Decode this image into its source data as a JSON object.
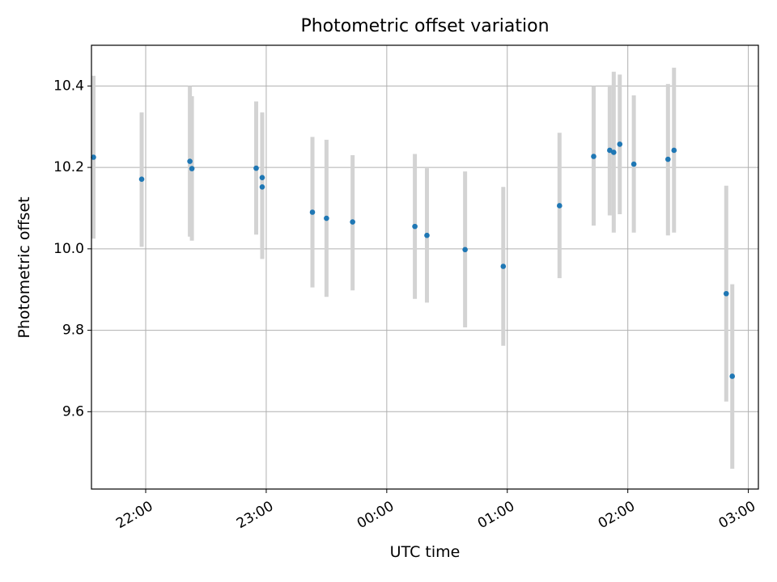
{
  "chart_data": {
    "type": "scatter",
    "title": "Photometric offset variation",
    "xlabel": "UTC time",
    "ylabel": "Photometric offset",
    "grid": true,
    "ylim": [
      9.41,
      10.5
    ],
    "xlim": [
      "21:33",
      "03:05"
    ],
    "x_ticks": [
      "22:00",
      "23:00",
      "00:00",
      "01:00",
      "02:00",
      "03:00"
    ],
    "y_ticks": [
      "9.6",
      "9.8",
      "10.0",
      "10.2",
      "10.4"
    ],
    "colors": {
      "point": "#1f77b4",
      "errorbar": "#d3d3d3",
      "grid": "#b0b0b0"
    },
    "points": [
      {
        "x": "21:34",
        "y": 10.225,
        "lo": 10.025,
        "hi": 10.425
      },
      {
        "x": "21:58",
        "y": 10.171,
        "lo": 10.005,
        "hi": 10.335
      },
      {
        "x": "22:22",
        "y": 10.215,
        "lo": 10.03,
        "hi": 10.4
      },
      {
        "x": "22:23",
        "y": 10.197,
        "lo": 10.02,
        "hi": 10.375
      },
      {
        "x": "22:55",
        "y": 10.198,
        "lo": 10.035,
        "hi": 10.362
      },
      {
        "x": "22:58",
        "y": 10.175,
        "lo": 10.0,
        "hi": 10.335
      },
      {
        "x": "22:58",
        "y": 10.152,
        "lo": 9.975,
        "hi": 10.33
      },
      {
        "x": "23:23",
        "y": 10.09,
        "lo": 9.905,
        "hi": 10.275
      },
      {
        "x": "23:30",
        "y": 10.075,
        "lo": 9.882,
        "hi": 10.268
      },
      {
        "x": "23:43",
        "y": 10.066,
        "lo": 9.898,
        "hi": 10.23
      },
      {
        "x": "00:14",
        "y": 10.055,
        "lo": 9.877,
        "hi": 10.233
      },
      {
        "x": "00:20",
        "y": 10.033,
        "lo": 9.868,
        "hi": 10.198
      },
      {
        "x": "00:39",
        "y": 9.998,
        "lo": 9.807,
        "hi": 10.19
      },
      {
        "x": "00:58",
        "y": 9.957,
        "lo": 9.762,
        "hi": 10.152
      },
      {
        "x": "01:26",
        "y": 10.106,
        "lo": 9.928,
        "hi": 10.285
      },
      {
        "x": "01:43",
        "y": 10.227,
        "lo": 10.057,
        "hi": 10.4
      },
      {
        "x": "01:51",
        "y": 10.242,
        "lo": 10.082,
        "hi": 10.402
      },
      {
        "x": "01:53",
        "y": 10.237,
        "lo": 10.04,
        "hi": 10.435
      },
      {
        "x": "01:56",
        "y": 10.257,
        "lo": 10.085,
        "hi": 10.428
      },
      {
        "x": "02:03",
        "y": 10.208,
        "lo": 10.04,
        "hi": 10.377
      },
      {
        "x": "02:20",
        "y": 10.22,
        "lo": 10.033,
        "hi": 10.405
      },
      {
        "x": "02:23",
        "y": 10.242,
        "lo": 10.04,
        "hi": 10.445
      },
      {
        "x": "02:49",
        "y": 9.89,
        "lo": 9.625,
        "hi": 10.155
      },
      {
        "x": "02:52",
        "y": 9.687,
        "lo": 9.46,
        "hi": 9.913
      }
    ]
  }
}
